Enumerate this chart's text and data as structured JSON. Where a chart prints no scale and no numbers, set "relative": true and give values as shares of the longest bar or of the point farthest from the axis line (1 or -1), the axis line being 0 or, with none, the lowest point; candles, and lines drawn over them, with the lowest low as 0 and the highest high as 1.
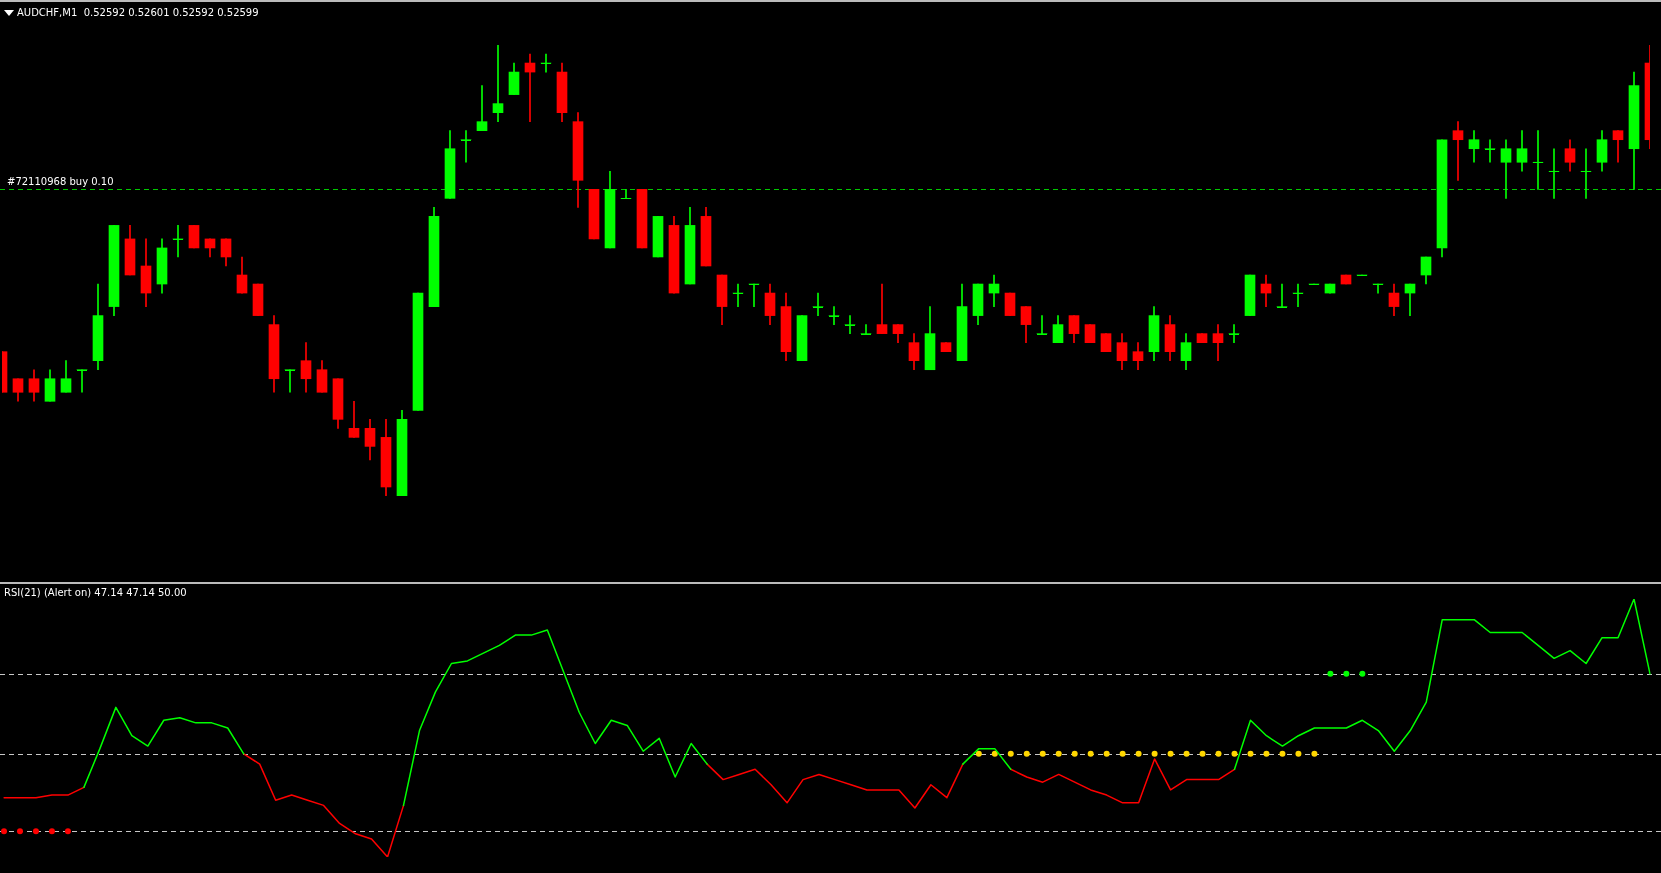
{
  "chart_data": [
    {
      "type": "candlestick",
      "title": "AUDCHF,M1  0.52592 0.52601 0.52592 0.52599",
      "relative": true,
      "categories": [
        null,
        null,
        null,
        null,
        null,
        null,
        null,
        null,
        null,
        null,
        null,
        null,
        null,
        null,
        null,
        null,
        null,
        null,
        null,
        null,
        null,
        null,
        null,
        null,
        null,
        null,
        null,
        null,
        null,
        null,
        null,
        null,
        null,
        null,
        null,
        null,
        null,
        null,
        null,
        null,
        null,
        null,
        null,
        null,
        null,
        null,
        null,
        null,
        null,
        null,
        null,
        null,
        null,
        null,
        null,
        null,
        null,
        null,
        null,
        null,
        null,
        null,
        null,
        null,
        null,
        null,
        null,
        null,
        null,
        null,
        null,
        null,
        null,
        null,
        null,
        null,
        null,
        null,
        null,
        null,
        null,
        null,
        null,
        null,
        null,
        null,
        null,
        null,
        null,
        null,
        null,
        null,
        null,
        null,
        null,
        null,
        null,
        null,
        null,
        null,
        null,
        null,
        null,
        null
      ],
      "ohlc": [
        [
          0.32,
          0.32,
          0.23,
          0.23
        ],
        [
          0.26,
          0.26,
          0.21,
          0.23
        ],
        [
          0.26,
          0.28,
          0.21,
          0.23
        ],
        [
          0.21,
          0.28,
          0.21,
          0.26
        ],
        [
          0.23,
          0.3,
          0.23,
          0.26
        ],
        [
          0.28,
          0.28,
          0.23,
          0.28
        ],
        [
          0.3,
          0.47,
          0.28,
          0.4
        ],
        [
          0.42,
          0.6,
          0.4,
          0.6
        ],
        [
          0.57,
          0.6,
          0.49,
          0.49
        ],
        [
          0.51,
          0.57,
          0.42,
          0.45
        ],
        [
          0.47,
          0.57,
          0.45,
          0.55
        ],
        [
          0.57,
          0.6,
          0.53,
          0.57
        ],
        [
          0.6,
          0.6,
          0.55,
          0.55
        ],
        [
          0.57,
          0.57,
          0.53,
          0.55
        ],
        [
          0.57,
          0.57,
          0.51,
          0.53
        ],
        [
          0.49,
          0.53,
          0.45,
          0.45
        ],
        [
          0.47,
          0.47,
          0.4,
          0.4
        ],
        [
          0.38,
          0.4,
          0.23,
          0.26
        ],
        [
          0.28,
          0.28,
          0.23,
          0.28
        ],
        [
          0.3,
          0.34,
          0.23,
          0.26
        ],
        [
          0.28,
          0.3,
          0.23,
          0.23
        ],
        [
          0.26,
          0.26,
          0.15,
          0.17
        ],
        [
          0.15,
          0.21,
          0.13,
          0.13
        ],
        [
          0.15,
          0.17,
          0.08,
          0.11
        ],
        [
          0.13,
          0.17,
          0,
          0.02
        ],
        [
          0,
          0.19,
          0,
          0.17
        ],
        [
          0.19,
          0.45,
          0.19,
          0.45
        ],
        [
          0.42,
          0.64,
          0.42,
          0.62
        ],
        [
          0.66,
          0.81,
          0.66,
          0.77
        ],
        [
          0.79,
          0.81,
          0.74,
          0.79
        ],
        [
          0.81,
          0.91,
          0.81,
          0.83
        ],
        [
          0.85,
          1,
          0.83,
          0.87
        ],
        [
          0.89,
          0.96,
          0.89,
          0.94
        ],
        [
          0.96,
          0.98,
          0.83,
          0.94
        ],
        [
          0.96,
          0.98,
          0.94,
          0.96
        ],
        [
          0.94,
          0.96,
          0.83,
          0.85
        ],
        [
          0.83,
          0.85,
          0.64,
          0.7
        ],
        [
          0.68,
          0.68,
          0.57,
          0.57
        ],
        [
          0.55,
          0.72,
          0.55,
          0.68
        ],
        [
          0.66,
          0.68,
          0.66,
          0.66
        ],
        [
          0.68,
          0.68,
          0.55,
          0.55
        ],
        [
          0.53,
          0.62,
          0.53,
          0.62
        ],
        [
          0.6,
          0.62,
          0.45,
          0.45
        ],
        [
          0.47,
          0.64,
          0.47,
          0.6
        ],
        [
          0.62,
          0.64,
          0.51,
          0.51
        ],
        [
          0.49,
          0.49,
          0.38,
          0.42
        ],
        [
          0.45,
          0.47,
          0.42,
          0.45
        ],
        [
          0.47,
          0.47,
          0.42,
          0.47
        ],
        [
          0.45,
          0.47,
          0.38,
          0.4
        ],
        [
          0.42,
          0.45,
          0.3,
          0.32
        ],
        [
          0.3,
          0.4,
          0.3,
          0.4
        ],
        [
          0.42,
          0.45,
          0.4,
          0.42
        ],
        [
          0.4,
          0.42,
          0.38,
          0.4
        ],
        [
          0.38,
          0.4,
          0.36,
          0.38
        ],
        [
          0.36,
          0.38,
          0.36,
          0.36
        ],
        [
          0.38,
          0.47,
          0.36,
          0.36
        ],
        [
          0.38,
          0.38,
          0.34,
          0.36
        ],
        [
          0.34,
          0.36,
          0.28,
          0.3
        ],
        [
          0.28,
          0.42,
          0.28,
          0.36
        ],
        [
          0.34,
          0.34,
          0.32,
          0.32
        ],
        [
          0.3,
          0.47,
          0.3,
          0.42
        ],
        [
          0.4,
          0.47,
          0.38,
          0.47
        ],
        [
          0.45,
          0.49,
          0.42,
          0.47
        ],
        [
          0.45,
          0.45,
          0.4,
          0.4
        ],
        [
          0.42,
          0.42,
          0.34,
          0.38
        ],
        [
          0.36,
          0.4,
          0.36,
          0.36
        ],
        [
          0.34,
          0.4,
          0.34,
          0.38
        ],
        [
          0.4,
          0.4,
          0.34,
          0.36
        ],
        [
          0.38,
          0.38,
          0.34,
          0.34
        ],
        [
          0.36,
          0.36,
          0.32,
          0.32
        ],
        [
          0.34,
          0.36,
          0.28,
          0.3
        ],
        [
          0.32,
          0.34,
          0.28,
          0.3
        ],
        [
          0.32,
          0.42,
          0.3,
          0.4
        ],
        [
          0.38,
          0.4,
          0.3,
          0.32
        ],
        [
          0.3,
          0.36,
          0.28,
          0.34
        ],
        [
          0.36,
          0.36,
          0.34,
          0.34
        ],
        [
          0.36,
          0.38,
          0.3,
          0.34
        ],
        [
          0.36,
          0.38,
          0.34,
          0.36
        ],
        [
          0.4,
          0.49,
          0.4,
          0.49
        ],
        [
          0.47,
          0.49,
          0.42,
          0.45
        ],
        [
          0.42,
          0.47,
          0.42,
          0.42
        ],
        [
          0.45,
          0.47,
          0.42,
          0.45
        ],
        [
          0.47,
          0.47,
          0.47,
          0.47
        ],
        [
          0.45,
          0.47,
          0.45,
          0.47
        ],
        [
          0.49,
          0.49,
          0.47,
          0.47
        ],
        [
          0.49,
          0.49,
          0.49,
          0.49
        ],
        [
          0.47,
          0.47,
          0.45,
          0.47
        ],
        [
          0.45,
          0.47,
          0.4,
          0.42
        ],
        [
          0.45,
          0.47,
          0.4,
          0.47
        ],
        [
          0.49,
          0.53,
          0.47,
          0.53
        ],
        [
          0.55,
          0.79,
          0.53,
          0.79
        ],
        [
          0.81,
          0.83,
          0.7,
          0.79
        ],
        [
          0.77,
          0.81,
          0.74,
          0.79
        ],
        [
          0.77,
          0.79,
          0.74,
          0.77
        ],
        [
          0.74,
          0.79,
          0.66,
          0.77
        ],
        [
          0.74,
          0.81,
          0.72,
          0.77
        ],
        [
          0.74,
          0.81,
          0.68,
          0.74
        ],
        [
          0.72,
          0.77,
          0.66,
          0.72
        ],
        [
          0.77,
          0.79,
          0.72,
          0.74
        ],
        [
          0.72,
          0.77,
          0.66,
          0.72
        ],
        [
          0.74,
          0.81,
          0.72,
          0.79
        ],
        [
          0.81,
          0.81,
          0.74,
          0.79
        ],
        [
          0.77,
          0.94,
          0.68,
          0.91
        ],
        [
          0.96,
          1,
          0.77,
          0.79
        ]
      ],
      "colors": [
        "#ff0000",
        "#ff0000",
        "#ff0000",
        "#00ff00",
        "#00ff00",
        "#00ff00",
        "#00ff00",
        "#00ff00",
        "#ff0000",
        "#ff0000",
        "#00ff00",
        "#00ff00",
        "#ff0000",
        "#ff0000",
        "#ff0000",
        "#ff0000",
        "#ff0000",
        "#ff0000",
        "#00ff00",
        "#ff0000",
        "#ff0000",
        "#ff0000",
        "#ff0000",
        "#ff0000",
        "#ff0000",
        "#00ff00",
        "#00ff00",
        "#00ff00",
        "#00ff00",
        "#00ff00",
        "#00ff00",
        "#00ff00",
        "#00ff00",
        "#ff0000",
        "#00ff00",
        "#ff0000",
        "#ff0000",
        "#ff0000",
        "#00ff00",
        "#00ff00",
        "#ff0000",
        "#00ff00",
        "#ff0000",
        "#00ff00",
        "#ff0000",
        "#ff0000",
        "#00ff00",
        "#00ff00",
        "#ff0000",
        "#ff0000",
        "#00ff00",
        "#00ff00",
        "#00ff00",
        "#00ff00",
        "#00ff00",
        "#ff0000",
        "#ff0000",
        "#ff0000",
        "#00ff00",
        "#ff0000",
        "#00ff00",
        "#00ff00",
        "#00ff00",
        "#ff0000",
        "#ff0000",
        "#00ff00",
        "#00ff00",
        "#ff0000",
        "#ff0000",
        "#ff0000",
        "#ff0000",
        "#ff0000",
        "#00ff00",
        "#ff0000",
        "#00ff00",
        "#ff0000",
        "#ff0000",
        "#00ff00",
        "#00ff00",
        "#ff0000",
        "#00ff00",
        "#00ff00",
        "#00ff00",
        "#00ff00",
        "#ff0000",
        "#00ff00",
        "#00ff00",
        "#ff0000",
        "#00ff00",
        "#00ff00",
        "#00ff00",
        "#ff0000",
        "#00ff00",
        "#00ff00",
        "#00ff00",
        "#00ff00",
        "#00ff00",
        "#00ff00",
        "#ff0000",
        "#00ff00",
        "#00ff00",
        "#ff0000",
        "#00ff00",
        "#ff0000"
      ],
      "ref_lines": [
        {
          "axis": "y",
          "value": 0.68,
          "label": "#72110968 buy 0.10",
          "color": "#00c800",
          "line_style": "dashed"
        }
      ]
    },
    {
      "type": "line",
      "title": "RSI(21) (Alert on) 47.14 47.14 50.00",
      "relative": true,
      "marker": "none",
      "categories": [
        null,
        null,
        null,
        null,
        null,
        null,
        null,
        null,
        null,
        null,
        null,
        null,
        null,
        null,
        null,
        null,
        null,
        null,
        null,
        null,
        null,
        null,
        null,
        null,
        null,
        null,
        null,
        null,
        null,
        null,
        null,
        null,
        null,
        null,
        null,
        null,
        null,
        null,
        null,
        null,
        null,
        null,
        null,
        null,
        null,
        null,
        null,
        null,
        null,
        null,
        null,
        null,
        null,
        null,
        null,
        null,
        null,
        null,
        null,
        null,
        null,
        null,
        null,
        null,
        null,
        null,
        null,
        null,
        null,
        null,
        null,
        null,
        null,
        null,
        null,
        null,
        null,
        null,
        null,
        null,
        null,
        null,
        null,
        null,
        null,
        null,
        null,
        null,
        null,
        null,
        null,
        null,
        null,
        null,
        null,
        null,
        null,
        null,
        null,
        null,
        null,
        null,
        null,
        null
      ],
      "series": [
        {
          "type": "line",
          "color": "#00ff00",
          "values": [
            null,
            null,
            null,
            null,
            null,
            0.27,
            0.42,
            0.58,
            0.47,
            0.43,
            0.53,
            0.54,
            0.52,
            0.52,
            0.5,
            0.4,
            null,
            null,
            null,
            null,
            null,
            null,
            null,
            null,
            null,
            0.2,
            0.49,
            0.64,
            0.75,
            0.76,
            0.79,
            0.82,
            0.86,
            0.86,
            0.88,
            0.72,
            0.56,
            0.44,
            0.53,
            0.51,
            0.41,
            0.46,
            0.31,
            0.44,
            0.36,
            null,
            null,
            null,
            null,
            null,
            null,
            null,
            null,
            null,
            null,
            null,
            null,
            null,
            null,
            null,
            0.36,
            0.42,
            0.42,
            0.34,
            null,
            null,
            null,
            null,
            null,
            null,
            null,
            null,
            null,
            null,
            null,
            null,
            null,
            0.34,
            0.53,
            0.47,
            0.43,
            0.47,
            0.5,
            0.5,
            0.5,
            0.53,
            0.49,
            0.41,
            0.49,
            0.6,
            0.92,
            0.92,
            0.92,
            0.87,
            0.87,
            0.87,
            0.82,
            0.77,
            0.8,
            0.75,
            0.85,
            0.85,
            1,
            0.71
          ]
        },
        {
          "type": "line",
          "color": "#ff0000",
          "values": [
            0.23,
            0.23,
            0.23,
            0.24,
            0.24,
            0.27,
            null,
            null,
            null,
            null,
            null,
            null,
            null,
            null,
            null,
            0.4,
            0.36,
            0.22,
            0.24,
            0.22,
            0.2,
            0.13,
            0.09,
            0.07,
            0,
            0.2,
            null,
            null,
            null,
            null,
            null,
            null,
            null,
            null,
            null,
            null,
            null,
            null,
            null,
            null,
            null,
            null,
            null,
            null,
            0.36,
            0.3,
            0.32,
            0.34,
            0.28,
            0.21,
            0.3,
            0.32,
            0.3,
            0.28,
            0.26,
            0.26,
            0.26,
            0.19,
            0.28,
            0.23,
            0.36,
            null,
            null,
            0.34,
            0.31,
            0.29,
            0.32,
            0.29,
            0.26,
            0.24,
            0.21,
            0.21,
            0.38,
            0.26,
            0.3,
            0.3,
            0.3,
            0.34,
            null,
            null,
            null,
            null,
            null,
            null,
            null,
            null,
            null,
            null,
            null,
            null,
            null,
            null,
            null,
            null,
            null,
            null,
            null,
            null,
            null,
            null,
            null,
            null,
            null,
            null
          ]
        },
        {
          "type": "scatter",
          "marker": "circle",
          "color": "#ff0000",
          "values": [
            0.1,
            0.1,
            0.1,
            0.1,
            0.1,
            null,
            null,
            null,
            null,
            null,
            null,
            null,
            null,
            null,
            null,
            null,
            null,
            null,
            null,
            null,
            null,
            null,
            null,
            null,
            null,
            null,
            null,
            null,
            null,
            null,
            null,
            null,
            null,
            null,
            null,
            null,
            null,
            null,
            null,
            null,
            null,
            null,
            null,
            null,
            null,
            null,
            null,
            null,
            null,
            null,
            null,
            null,
            null,
            null,
            null,
            null,
            null,
            null,
            null,
            null,
            null,
            null,
            null,
            null,
            null,
            null,
            null,
            null,
            null,
            null,
            null,
            null,
            null,
            null,
            null,
            null,
            null,
            null,
            null,
            null,
            null,
            null,
            null,
            null,
            null,
            null,
            null,
            null,
            null,
            null,
            null,
            null,
            null,
            null,
            null,
            null,
            null,
            null,
            null,
            null,
            null,
            null,
            null,
            null
          ]
        },
        {
          "type": "scatter",
          "marker": "circle",
          "color": "#ffd700",
          "values": [
            null,
            null,
            null,
            null,
            null,
            null,
            null,
            null,
            null,
            null,
            null,
            null,
            null,
            null,
            null,
            null,
            null,
            null,
            null,
            null,
            null,
            null,
            null,
            null,
            null,
            null,
            null,
            null,
            null,
            null,
            null,
            null,
            null,
            null,
            null,
            null,
            null,
            null,
            null,
            null,
            null,
            null,
            null,
            null,
            null,
            null,
            null,
            null,
            null,
            null,
            null,
            null,
            null,
            null,
            null,
            null,
            null,
            null,
            null,
            null,
            null,
            0.4,
            0.4,
            0.4,
            0.4,
            0.4,
            0.4,
            0.4,
            0.4,
            0.4,
            0.4,
            0.4,
            0.4,
            0.4,
            0.4,
            0.4,
            0.4,
            0.4,
            0.4,
            0.4,
            0.4,
            0.4,
            0.4,
            null,
            null,
            null,
            null,
            null,
            null,
            null,
            null,
            null,
            null,
            null,
            null,
            null,
            null,
            null,
            null,
            null,
            null,
            null,
            null,
            null
          ]
        },
        {
          "type": "scatter",
          "marker": "circle",
          "color": "#00ff00",
          "values": [
            null,
            null,
            null,
            null,
            null,
            null,
            null,
            null,
            null,
            null,
            null,
            null,
            null,
            null,
            null,
            null,
            null,
            null,
            null,
            null,
            null,
            null,
            null,
            null,
            null,
            null,
            null,
            null,
            null,
            null,
            null,
            null,
            null,
            null,
            null,
            null,
            null,
            null,
            null,
            null,
            null,
            null,
            null,
            null,
            null,
            null,
            null,
            null,
            null,
            null,
            null,
            null,
            null,
            null,
            null,
            null,
            null,
            null,
            null,
            null,
            null,
            null,
            null,
            null,
            null,
            null,
            null,
            null,
            null,
            null,
            null,
            null,
            null,
            null,
            null,
            null,
            null,
            null,
            null,
            null,
            null,
            null,
            null,
            0.71,
            0.71,
            0.71,
            null,
            null,
            null,
            null,
            null,
            null,
            null,
            null,
            null,
            null,
            null,
            null,
            null,
            null,
            null,
            null,
            null,
            null
          ]
        }
      ],
      "ref_lines": [
        {
          "axis": "y",
          "value": 0.71,
          "color": "#c8c8c8",
          "line_style": "dashed"
        },
        {
          "axis": "y",
          "value": 0.4,
          "color": "#c8c8c8",
          "line_style": "dashed"
        },
        {
          "axis": "y",
          "value": 0.1,
          "color": "#c8c8c8",
          "line_style": "dashed"
        }
      ]
    }
  ]
}
